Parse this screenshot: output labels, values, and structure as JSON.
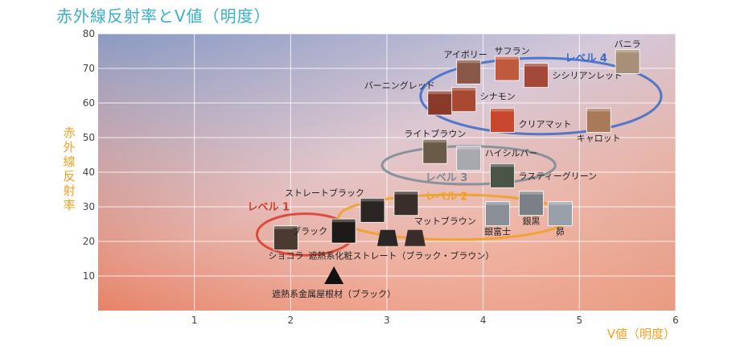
{
  "chart_data": {
    "type": "scatter",
    "title": "赤外線反射率とV値（明度）",
    "xlabel": "V値（明度）",
    "ylabel": "赤外線反射率",
    "xlim": [
      0,
      6
    ],
    "ylim": [
      0,
      80
    ],
    "xticks": [
      "1",
      "2",
      "3",
      "4",
      "5",
      "6"
    ],
    "yticks": [
      "10",
      "20",
      "30",
      "40",
      "50",
      "60",
      "70",
      "80"
    ],
    "grid": true,
    "points": [
      {
        "label": "ショコラ",
        "x": 1.95,
        "y": 21,
        "color": "#4a3a30"
      },
      {
        "label": "ブラック",
        "x": 2.55,
        "y": 23,
        "color": "#1e1a18"
      },
      {
        "label": "遮熱系金属屋根材（ブラック）",
        "x": 2.45,
        "y": 10,
        "color": "#111111"
      },
      {
        "label": "ストレートブラック",
        "x": 2.85,
        "y": 29,
        "color": "#2a2624"
      },
      {
        "label": "遮熱系化粧ストレート（ブラック・ブラウン）",
        "x": 3.15,
        "y": 21,
        "color": "#2a2624"
      },
      {
        "label": "マットブラウン",
        "x": 3.2,
        "y": 31,
        "color": "#3a2e2a"
      },
      {
        "label": "銀富士",
        "x": 4.15,
        "y": 28,
        "color": "#8a8f98"
      },
      {
        "label": "銀黒",
        "x": 4.5,
        "y": 31,
        "color": "#7b8088"
      },
      {
        "label": "昴",
        "x": 4.8,
        "y": 28,
        "color": "#9aa0aa"
      },
      {
        "label": "ライトブラウン",
        "x": 3.5,
        "y": 46,
        "color": "#6a5a48"
      },
      {
        "label": "ハイシルバー",
        "x": 3.85,
        "y": 44,
        "color": "#a7a9ad"
      },
      {
        "label": "ラスティーグリーン",
        "x": 4.2,
        "y": 39,
        "color": "#4a5548"
      },
      {
        "label": "バーニングレッド",
        "x": 3.55,
        "y": 60,
        "color": "#8a3a2a"
      },
      {
        "label": "シナモン",
        "x": 3.8,
        "y": 61,
        "color": "#a84a32"
      },
      {
        "label": "アイボリー",
        "x": 3.85,
        "y": 69,
        "color": "#8a5848"
      },
      {
        "label": "サフラン",
        "x": 4.25,
        "y": 70,
        "color": "#c05a3e"
      },
      {
        "label": "シシリアンレッド",
        "x": 4.55,
        "y": 68,
        "color": "#a4483a"
      },
      {
        "label": "クリアマット",
        "x": 4.2,
        "y": 55,
        "color": "#c8482e"
      },
      {
        "label": "キャロット",
        "x": 5.2,
        "y": 55,
        "color": "#a87a5a"
      },
      {
        "label": "バニラ",
        "x": 5.5,
        "y": 72,
        "color": "#a89078"
      }
    ],
    "levels": [
      {
        "label": "レベル 1",
        "color": "#d83a2a"
      },
      {
        "label": "レベル 2",
        "color": "#f0a020"
      },
      {
        "label": "レベル 3",
        "color": "#7a8a94"
      },
      {
        "label": "レベル 4",
        "color": "#3a6ac8"
      }
    ]
  }
}
